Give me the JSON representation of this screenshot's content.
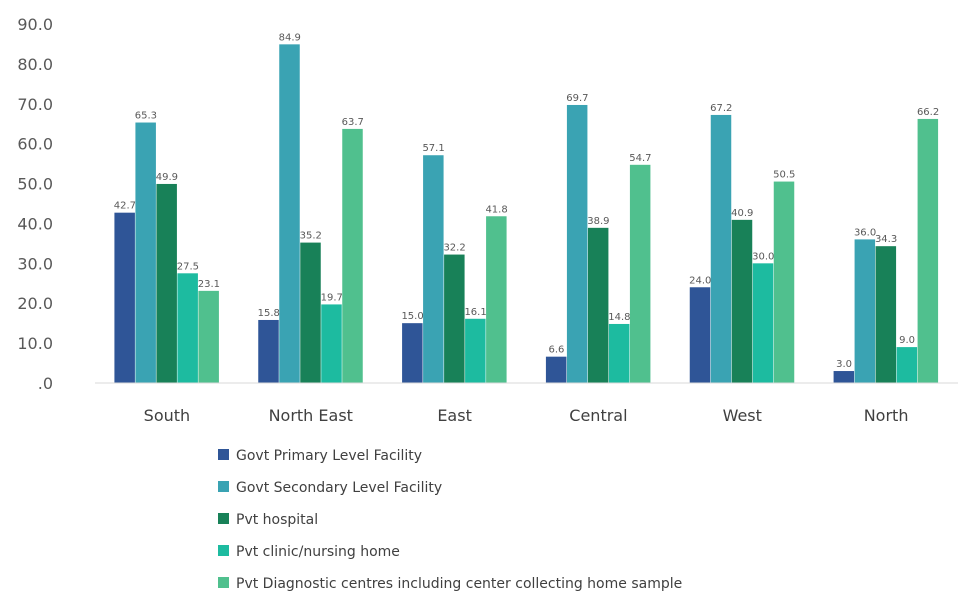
{
  "chart_data": {
    "type": "bar",
    "title": "",
    "xlabel": "",
    "ylabel": "",
    "ylim": [
      0,
      90
    ],
    "yticks": [
      ".0",
      "10.0",
      "20.0",
      "30.0",
      "40.0",
      "50.0",
      "60.0",
      "70.0",
      "80.0",
      "90.0"
    ],
    "categories": [
      "South",
      "North East",
      "East",
      "Central",
      "West",
      "North"
    ],
    "legend_position": "bottom",
    "grid": false,
    "series": [
      {
        "name": "Govt Primary Level Facility",
        "color": "#2f5597",
        "values": [
          42.7,
          15.8,
          15.0,
          6.6,
          24.0,
          3.0
        ],
        "labels": [
          "42.7",
          "15.8",
          "15.0",
          "6.6",
          "24.0",
          "3.0"
        ]
      },
      {
        "name": "Govt Secondary Level Facility",
        "color": "#3aa3b3",
        "values": [
          65.3,
          84.9,
          57.1,
          69.7,
          67.2,
          36.0
        ],
        "labels": [
          "65.3",
          "84.9",
          "57.1",
          "69.7",
          "67.2",
          "36.0"
        ]
      },
      {
        "name": "Pvt hospital",
        "color": "#188158",
        "values": [
          49.9,
          35.2,
          32.2,
          38.9,
          40.9,
          34.3
        ],
        "labels": [
          "49.9",
          "35.2",
          "32.2",
          "38.9",
          "40.9",
          "34.3"
        ]
      },
      {
        "name": "Pvt clinic/nursing home",
        "color": "#1dbba0",
        "values": [
          27.5,
          19.7,
          16.1,
          14.8,
          30.0,
          9.0
        ],
        "labels": [
          "27.5",
          "19.7",
          "16.1",
          "14.8",
          "30.0",
          "9.0"
        ]
      },
      {
        "name": "Pvt Diagnostic centres including center collecting home sample",
        "color": "#50c08e",
        "values": [
          23.1,
          63.7,
          41.8,
          54.7,
          50.5,
          66.2
        ],
        "labels": [
          "23.1",
          "63.7",
          "41.8",
          "54.7",
          "50.5",
          "66.2"
        ]
      }
    ]
  }
}
